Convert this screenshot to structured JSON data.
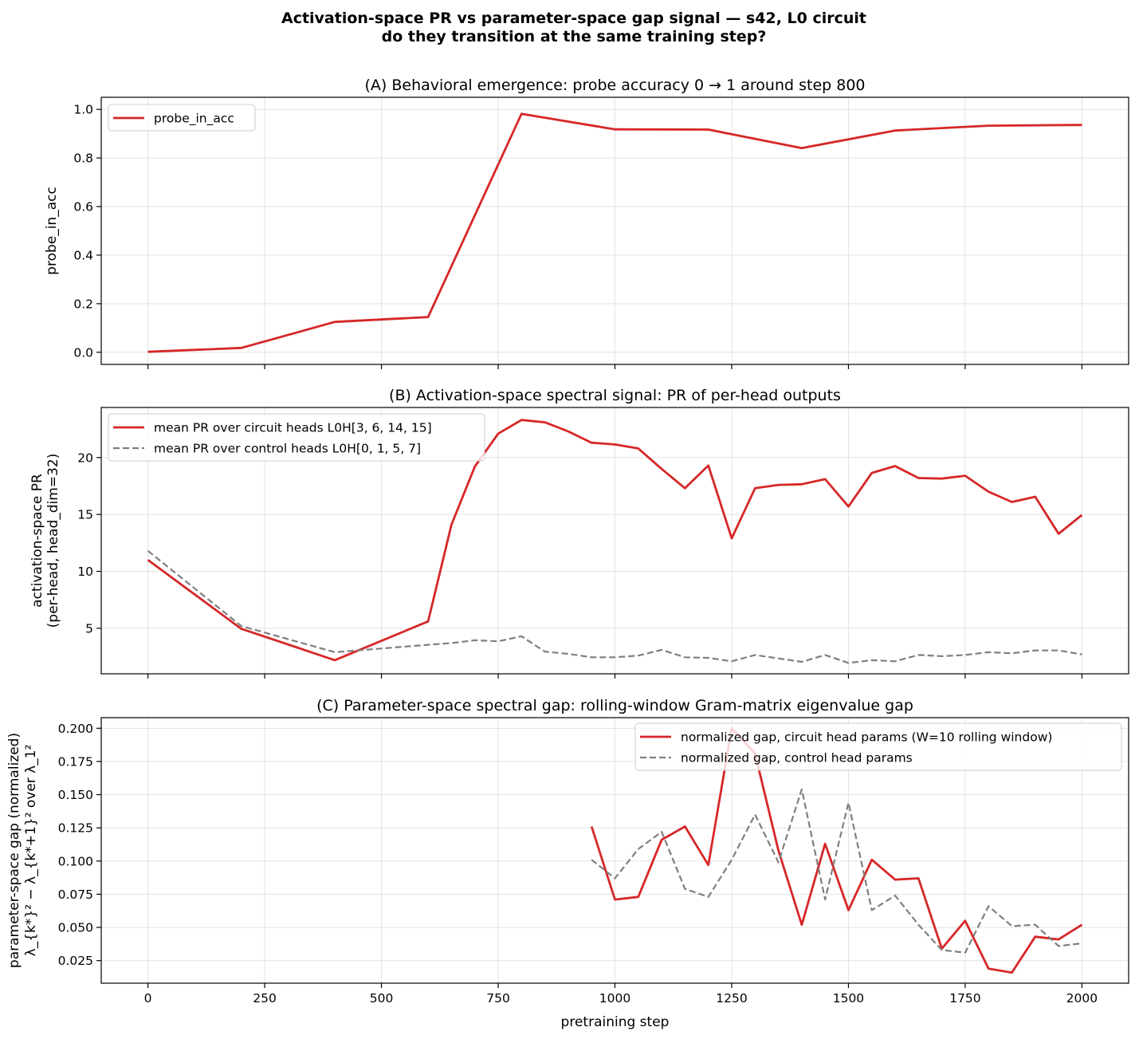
{
  "suptitle": {
    "line1": "Activation-space PR vs parameter-space gap signal — s42, L0 circuit",
    "line2": "do they transition at the same training step?"
  },
  "colors": {
    "circuit": "#d62728",
    "control": "#7f7f7f"
  },
  "chart_data": [
    {
      "type": "line",
      "title": "(A) Behavioral emergence: probe accuracy 0 → 1 around step 800",
      "xlabel": "",
      "ylabel": [
        "probe_in_acc"
      ],
      "xlim": [
        -100,
        2100
      ],
      "ylim": [
        -0.05,
        1.05
      ],
      "xticks": [
        0,
        250,
        500,
        750,
        1000,
        1250,
        1500,
        1750,
        2000
      ],
      "xticklabels_visible": false,
      "yticks": [
        0.0,
        0.2,
        0.4,
        0.6,
        0.8,
        1.0
      ],
      "ytick_decimals": 1,
      "grid": true,
      "legend": "top-left",
      "series": [
        {
          "name": "probe_in_acc",
          "color": "#d62728",
          "dashed": false,
          "x": [
            0,
            200,
            400,
            600,
            800,
            1000,
            1200,
            1400,
            1600,
            1800,
            2000
          ],
          "y": [
            0.002,
            0.018,
            0.125,
            0.145,
            0.982,
            0.918,
            0.917,
            0.841,
            0.913,
            0.933,
            0.936
          ]
        }
      ]
    },
    {
      "type": "line",
      "title": "(B) Activation-space spectral signal: PR of per-head outputs",
      "xlabel": "",
      "ylabel": [
        "activation-space PR",
        "(per-head, head_dim=32)"
      ],
      "xlim": [
        -100,
        2100
      ],
      "ylim": [
        1.0,
        24.4
      ],
      "xticks": [
        0,
        250,
        500,
        750,
        1000,
        1250,
        1500,
        1750,
        2000
      ],
      "xticklabels_visible": false,
      "yticks": [
        5,
        10,
        15,
        20
      ],
      "ytick_decimals": 0,
      "grid": true,
      "legend": "top-left",
      "series": [
        {
          "name": "mean PR over circuit heads L0H[3, 6, 14, 15]",
          "color": "#d62728",
          "dashed": false,
          "x": [
            0,
            200,
            400,
            600,
            650,
            700,
            750,
            800,
            850,
            900,
            950,
            1000,
            1050,
            1100,
            1150,
            1200,
            1250,
            1300,
            1350,
            1400,
            1450,
            1500,
            1550,
            1600,
            1650,
            1700,
            1750,
            1800,
            1850,
            1900,
            1950,
            2000
          ],
          "y": [
            11.0,
            4.95,
            2.2,
            5.6,
            14.1,
            19.2,
            22.1,
            23.3,
            23.1,
            22.3,
            21.3,
            21.15,
            20.8,
            19.0,
            17.3,
            19.3,
            12.9,
            17.3,
            17.6,
            17.65,
            18.1,
            15.7,
            18.65,
            19.25,
            18.2,
            18.15,
            18.4,
            17.0,
            16.1,
            16.55,
            13.3,
            14.95
          ]
        },
        {
          "name": "mean PR over control heads L0H[0, 1, 5, 7]",
          "color": "#7f7f7f",
          "dashed": true,
          "x": [
            0,
            200,
            400,
            600,
            650,
            700,
            750,
            800,
            850,
            900,
            950,
            1000,
            1050,
            1100,
            1150,
            1200,
            1250,
            1300,
            1350,
            1400,
            1450,
            1500,
            1550,
            1600,
            1650,
            1700,
            1750,
            1800,
            1850,
            1900,
            1950,
            2000
          ],
          "y": [
            11.8,
            5.2,
            2.9,
            3.55,
            3.7,
            3.95,
            3.85,
            4.3,
            2.95,
            2.75,
            2.45,
            2.45,
            2.6,
            3.1,
            2.45,
            2.4,
            2.1,
            2.65,
            2.35,
            2.05,
            2.65,
            1.95,
            2.2,
            2.1,
            2.65,
            2.55,
            2.65,
            2.9,
            2.8,
            3.05,
            3.05,
            2.7
          ]
        }
      ]
    },
    {
      "type": "line",
      "title": "(C) Parameter-space spectral gap: rolling-window Gram-matrix eigenvalue gap",
      "xlabel": "pretraining step",
      "ylabel": [
        "parameter-space gap (normalized)",
        "λ_{k*}² − λ_{k*+1}² over λ_1²"
      ],
      "xlim": [
        -100,
        2100
      ],
      "ylim": [
        0.008,
        0.208
      ],
      "xticks": [
        0,
        250,
        500,
        750,
        1000,
        1250,
        1500,
        1750,
        2000
      ],
      "xticklabels_visible": true,
      "yticks": [
        0.025,
        0.05,
        0.075,
        0.1,
        0.125,
        0.15,
        0.175,
        0.2
      ],
      "ytick_decimals": 3,
      "grid": true,
      "legend": "top-right",
      "series": [
        {
          "name": "normalized gap, circuit head params (W=10 rolling window)",
          "color": "#d62728",
          "dashed": false,
          "x": [
            950,
            1000,
            1050,
            1100,
            1150,
            1200,
            1250,
            1300,
            1350,
            1400,
            1450,
            1500,
            1550,
            1600,
            1650,
            1700,
            1750,
            1800,
            1850,
            1900,
            1950,
            2000
          ],
          "y": [
            0.126,
            0.071,
            0.073,
            0.116,
            0.126,
            0.097,
            0.2,
            0.181,
            0.108,
            0.052,
            0.113,
            0.063,
            0.101,
            0.086,
            0.087,
            0.034,
            0.055,
            0.019,
            0.016,
            0.043,
            0.041,
            0.052
          ]
        },
        {
          "name": "normalized gap, control head params",
          "color": "#7f7f7f",
          "dashed": true,
          "x": [
            950,
            1000,
            1050,
            1100,
            1150,
            1200,
            1250,
            1300,
            1350,
            1400,
            1450,
            1500,
            1550,
            1600,
            1650,
            1700,
            1750,
            1800,
            1850,
            1900,
            1950,
            2000
          ],
          "y": [
            0.101,
            0.087,
            0.109,
            0.122,
            0.079,
            0.073,
            0.101,
            0.135,
            0.099,
            0.154,
            0.071,
            0.144,
            0.063,
            0.074,
            0.052,
            0.033,
            0.031,
            0.066,
            0.051,
            0.052,
            0.036,
            0.038
          ]
        }
      ]
    }
  ]
}
